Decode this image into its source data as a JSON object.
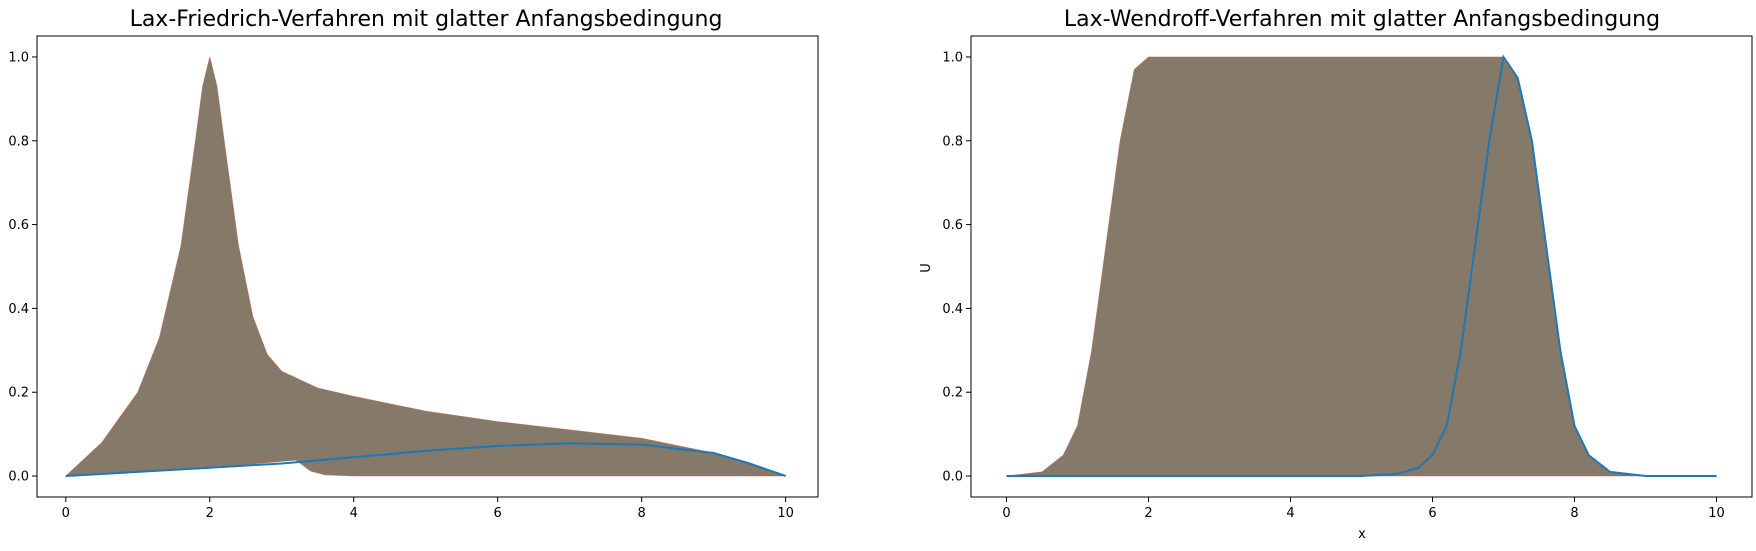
{
  "colors": {
    "band": "#857969",
    "band_edge_red": "#b45a4a",
    "band_edge_green": "#5a8a4e",
    "final_line": "#1f77b4",
    "axes": "#000000"
  },
  "chart_data": [
    {
      "type": "area",
      "title": "Lax-Friedrich-Verfahren mit glatter Anfangsbedingung",
      "xlabel": "",
      "ylabel": "",
      "xlim": [
        -0.4,
        10.45
      ],
      "ylim": [
        -0.05,
        1.05
      ],
      "xticks": [
        0,
        2,
        4,
        6,
        8,
        10
      ],
      "yticks": [
        0.0,
        0.2,
        0.4,
        0.6,
        0.8,
        1.0
      ],
      "xtick_labels": [
        "0",
        "2",
        "4",
        "6",
        "8",
        "10"
      ],
      "ytick_labels": [
        "0.0",
        "0.2",
        "0.4",
        "0.6",
        "0.8",
        "1.0"
      ],
      "grid": false,
      "envelope_upper": {
        "x": [
          0,
          0.5,
          1.0,
          1.3,
          1.6,
          1.8,
          1.9,
          2.0,
          2.1,
          2.2,
          2.4,
          2.6,
          2.8,
          3.0,
          3.5,
          4.0,
          5.0,
          6.0,
          7.0,
          8.0,
          9.0,
          9.5,
          10.0
        ],
        "y": [
          0.0,
          0.08,
          0.2,
          0.33,
          0.55,
          0.8,
          0.93,
          1.0,
          0.93,
          0.8,
          0.55,
          0.38,
          0.29,
          0.25,
          0.21,
          0.19,
          0.155,
          0.13,
          0.11,
          0.09,
          0.055,
          0.03,
          0.0
        ]
      },
      "envelope_lower": {
        "x": [
          0,
          1.0,
          2.0,
          3.0,
          3.2,
          3.4,
          3.6,
          4.0,
          5.0,
          6.0,
          7.0,
          8.0,
          9.0,
          9.5,
          10.0
        ],
        "y": [
          0.0,
          0.01,
          0.02,
          0.035,
          0.038,
          0.012,
          0.003,
          0.0,
          0.0,
          0.0,
          0.0,
          0.0,
          0.0,
          0.0,
          0.0
        ]
      },
      "final_curve": {
        "x": [
          0,
          1,
          2,
          3,
          4,
          5,
          6,
          7,
          8,
          9,
          9.5,
          10
        ],
        "y": [
          0.0,
          0.01,
          0.02,
          0.03,
          0.045,
          0.06,
          0.072,
          0.078,
          0.075,
          0.055,
          0.03,
          0.0
        ]
      }
    },
    {
      "type": "area",
      "title": "Lax-Wendroff-Verfahren mit glatter Anfangsbedingung",
      "xlabel": "x",
      "ylabel": "U",
      "xlim": [
        -0.5,
        10.5
      ],
      "ylim": [
        -0.05,
        1.05
      ],
      "xticks": [
        0,
        2,
        4,
        6,
        8,
        10
      ],
      "yticks": [
        0.0,
        0.2,
        0.4,
        0.6,
        0.8,
        1.0
      ],
      "xtick_labels": [
        "0",
        "2",
        "4",
        "6",
        "8",
        "10"
      ],
      "ytick_labels": [
        "0.0",
        "0.2",
        "0.4",
        "0.6",
        "0.8",
        "1.0"
      ],
      "grid": false,
      "envelope_upper": {
        "x": [
          0,
          0.5,
          0.8,
          1.0,
          1.2,
          1.4,
          1.6,
          1.8,
          2.0,
          6.9,
          7.0,
          7.2,
          7.4,
          7.6,
          7.8,
          8.0,
          8.2,
          8.5,
          9.0,
          10.0
        ],
        "y": [
          0.0,
          0.01,
          0.05,
          0.12,
          0.3,
          0.55,
          0.8,
          0.97,
          1.0,
          1.0,
          1.0,
          0.95,
          0.8,
          0.55,
          0.3,
          0.12,
          0.05,
          0.01,
          0.0,
          0.0
        ]
      },
      "final_curve": {
        "x": [
          0,
          5.0,
          5.5,
          5.8,
          6.0,
          6.2,
          6.4,
          6.6,
          6.8,
          7.0,
          7.2,
          7.4,
          7.6,
          7.8,
          8.0,
          8.2,
          8.5,
          9.0,
          10.0
        ],
        "y": [
          0.0,
          0.0,
          0.005,
          0.02,
          0.05,
          0.12,
          0.3,
          0.55,
          0.8,
          1.0,
          0.95,
          0.8,
          0.55,
          0.3,
          0.12,
          0.05,
          0.01,
          0.0,
          0.0
        ]
      }
    }
  ]
}
